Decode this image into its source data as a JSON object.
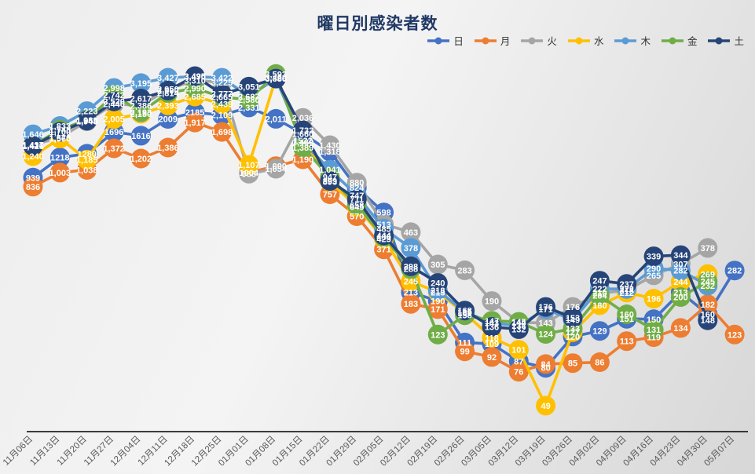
{
  "title": "曜日別感染者数",
  "legend": [
    {
      "label": "日",
      "color": "#4472C4"
    },
    {
      "label": "月",
      "color": "#ED7D31"
    },
    {
      "label": "火",
      "color": "#A5A5A5"
    },
    {
      "label": "水",
      "color": "#FFC000"
    },
    {
      "label": "木",
      "color": "#5B9BD5"
    },
    {
      "label": "金",
      "color": "#70AD47"
    },
    {
      "label": "土",
      "color": "#264478"
    }
  ],
  "chart_data": {
    "type": "line",
    "title": "曜日別感染者数",
    "scale": "log",
    "ylim": [
      35,
      4600
    ],
    "grid": false,
    "legend_position": "top-right",
    "axis_line_color": "#000000",
    "categories": [
      "11月06日",
      "11月13日",
      "11月20日",
      "11月27日",
      "12月04日",
      "12月11日",
      "12月18日",
      "12月25日",
      "01月01日",
      "01月08日",
      "01月15日",
      "01月22日",
      "01月29日",
      "02月05日",
      "02月12日",
      "02月19日",
      "02月26日",
      "03月05日",
      "03月12日",
      "03月19日",
      "03月26日",
      "04月02日",
      "04月09日",
      "04月16日",
      "04月23日",
      "04月30日",
      "05月07日"
    ],
    "series": [
      {
        "name": "日",
        "color": "#4472C4",
        "values": [
          939,
          1218,
          1280,
          1696,
          1616,
          2009,
          2185,
          2109,
          2331,
          2011,
          1660,
          1318,
          824,
          598,
          213,
          190,
          111,
          109,
          87,
          80,
          120,
          129,
          151,
          150,
          213,
          160,
          282
        ],
        "labels": [
          "939",
          "1218",
          "1280",
          "1696",
          "1616",
          "2009",
          "2185",
          "2,109",
          "2,331",
          "2,011",
          "1,660",
          "1,318",
          "824",
          "598",
          "213",
          "190",
          "111",
          "109",
          "87",
          "80",
          "120",
          "129",
          "151",
          "150",
          "213",
          "160",
          "282"
        ]
      },
      {
        "name": "月",
        "color": "#ED7D31",
        "values": [
          836,
          1003,
          1038,
          1372,
          1202,
          1386,
          1917,
          1698,
          1004,
          1090,
          1190,
          757,
          570,
          371,
          183,
          171,
          99,
          92,
          76,
          84,
          85,
          86,
          113,
          119,
          134,
          182,
          123
        ],
        "labels": [
          "836",
          "1,003",
          "1,038",
          "1,372",
          "1,202",
          "1,386",
          "1,917",
          "1,698",
          "1004",
          "1,090",
          "1,190",
          "757",
          "570",
          "371",
          "183",
          "171",
          "99",
          "92",
          "76",
          "84",
          "85",
          "86",
          "113",
          "119",
          "134",
          "182",
          "123"
        ]
      },
      {
        "name": "火",
        "color": "#A5A5A5",
        "values": [
          1437,
          1578,
          1948,
          2440,
          2386,
          2950,
          3310,
          3225,
          988,
          1054,
          2036,
          1430,
          880,
          513,
          463,
          305,
          283,
          190,
          144,
          143,
          176,
          210,
          218,
          265,
          307,
          378,
          null
        ],
        "labels": [
          "1,437",
          "1,578",
          "1,948",
          "2,440",
          "2,386",
          "2,950",
          "3,310",
          "3,225",
          "988",
          "1,054",
          "2,036",
          "1,430",
          "880",
          "513",
          "463",
          "305",
          "283",
          "190",
          "144",
          "143",
          "176",
          "210",
          "218",
          "265",
          "307",
          "378",
          null
        ]
      },
      {
        "name": "水",
        "color": "#FFC000",
        "values": [
          1240,
          1560,
          1185,
          2005,
          2150,
          2393,
          2685,
          2439,
          1107,
          3420,
          1522,
          893,
          645,
          425,
          245,
          213,
          162,
          118,
          101,
          49,
          127,
          180,
          212,
          196,
          244,
          269,
          null
        ],
        "labels": [
          "1,240",
          "1,560",
          "1,185",
          "2,005",
          "2,150",
          "2,393",
          "2,685",
          "2,439",
          "1,107",
          "3,420",
          "1522",
          "893",
          "645",
          "425",
          "245",
          "213",
          "162",
          "118",
          "101",
          "49",
          "127",
          "180",
          "212",
          "196",
          "244",
          "269",
          null
        ]
      },
      {
        "name": "木",
        "color": "#5B9BD5",
        "values": [
          1646,
          1833,
          2223,
          2998,
          3195,
          3427,
          3470,
          3422,
          2687,
          3390,
          1489,
          1041,
          747,
          485,
          378,
          218,
          165,
          143,
          138,
          171,
          149,
          222,
          222,
          290,
          282,
          232,
          null
        ],
        "labels": [
          "1,646",
          "1,833",
          "2,223",
          "2,998",
          "3,195",
          "3,427",
          "3,470",
          "3,422",
          "2,687",
          "3,390",
          "1,489",
          "1,041",
          "747",
          "485",
          "378",
          "218",
          "165",
          "143",
          "138",
          "171",
          "149",
          "222",
          "222",
          "290",
          "282",
          "232",
          null
        ]
      },
      {
        "name": "金",
        "color": "#70AD47",
        "values": [
          1421,
          1748,
          1983,
          2742,
          2193,
          2814,
          2990,
          2665,
          2580,
          3593,
          1389,
          947,
          658,
          435,
          288,
          123,
          158,
          147,
          145,
          124,
          133,
          204,
          160,
          131,
          200,
          245,
          null
        ],
        "labels": [
          "1,421",
          "1,748",
          "1,983",
          "2,742",
          "2,193",
          "2,814",
          "2,990",
          "2,665",
          "2,580",
          "3,593",
          "1,389",
          "947",
          "658",
          "435",
          "288",
          "123",
          "158",
          "147",
          "145",
          "124",
          "133",
          "204",
          "160",
          "131",
          "200",
          "245",
          null
        ]
      },
      {
        "name": "土",
        "color": "#264478",
        "values": [
          1416,
          1700,
          1965,
          2520,
          2617,
          2900,
          3495,
          2777,
          3051,
          3386,
          1733,
          899,
          711,
          444,
          298,
          240,
          168,
          136,
          132,
          176,
          153,
          247,
          237,
          339,
          344,
          148,
          null
        ],
        "labels": [
          "1,416",
          "1,700",
          "1,965",
          "2,520",
          "2,617",
          "2,900",
          "3,495",
          "2,777",
          "3,051",
          "3,386",
          "1,733",
          "899",
          "711",
          "444",
          "298",
          "240",
          "168",
          "136",
          "132",
          "176",
          "153",
          "247",
          "237",
          "339",
          "344",
          "148",
          null
        ]
      }
    ]
  }
}
